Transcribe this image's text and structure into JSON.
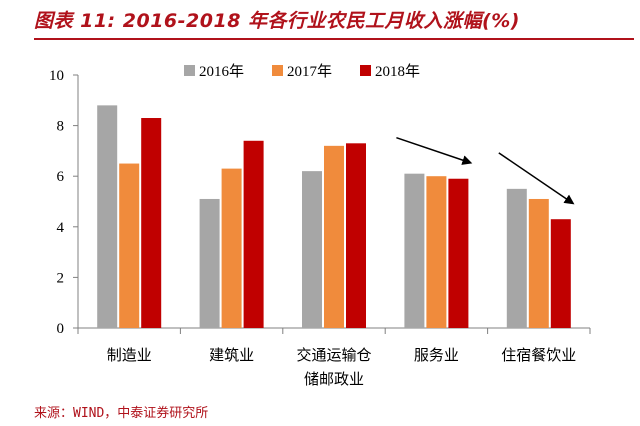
{
  "title": "图表 11: 2016-2018 年各行业农民工月收入涨幅(%)",
  "source": "来源：WIND，中泰证券研究所",
  "colors": {
    "accent": "#b0121b",
    "s2016": "#a6a6a6",
    "s2017": "#f08b3c",
    "s2018": "#c00000"
  },
  "chart_data": {
    "type": "bar",
    "title": "2016-2018 年各行业农民工月收入涨幅(%)",
    "categories": [
      [
        "制造业"
      ],
      [
        "建筑业"
      ],
      [
        "交通运输仓",
        "储邮政业"
      ],
      [
        "服务业"
      ],
      [
        "住宿餐饮业"
      ]
    ],
    "series": [
      {
        "name": "2016年",
        "values": [
          8.8,
          5.1,
          6.2,
          6.1,
          5.5
        ]
      },
      {
        "name": "2017年",
        "values": [
          6.5,
          6.3,
          7.2,
          6.0,
          5.1
        ]
      },
      {
        "name": "2018年",
        "values": [
          8.3,
          7.4,
          7.3,
          5.9,
          4.3
        ]
      }
    ],
    "ylim": [
      0,
      10
    ],
    "yticks": [
      "0",
      "2",
      "4",
      "6",
      "8",
      "10"
    ],
    "grid": false,
    "legend_position": "top-right",
    "annotations": [
      "downward arrow over 服务业",
      "downward arrow over 住宿餐饮业"
    ]
  }
}
